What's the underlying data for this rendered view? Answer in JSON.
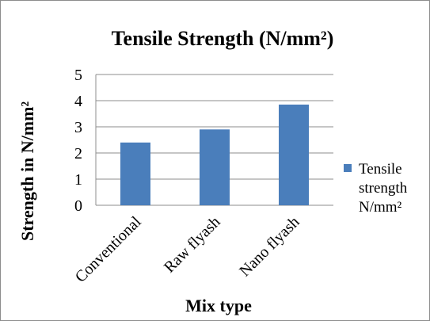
{
  "chart_data": {
    "type": "bar",
    "title": "Tensile Strength (N/mm²)",
    "xlabel": "Mix type",
    "ylabel": "Strength in N/mm²",
    "categories": [
      "Conventional",
      "Raw flyash",
      "Nano flyash"
    ],
    "series": [
      {
        "name": "Tensile strength N/mm²",
        "name_lines": [
          "Tensile",
          "strength",
          "N/mm²"
        ],
        "values": [
          2.4,
          2.9,
          3.85
        ],
        "color": "#4a7ebb"
      }
    ],
    "ylim": [
      0,
      5
    ],
    "yticks": [
      0,
      1,
      2,
      3,
      4,
      5
    ],
    "grid": true,
    "legend_position": "right"
  }
}
